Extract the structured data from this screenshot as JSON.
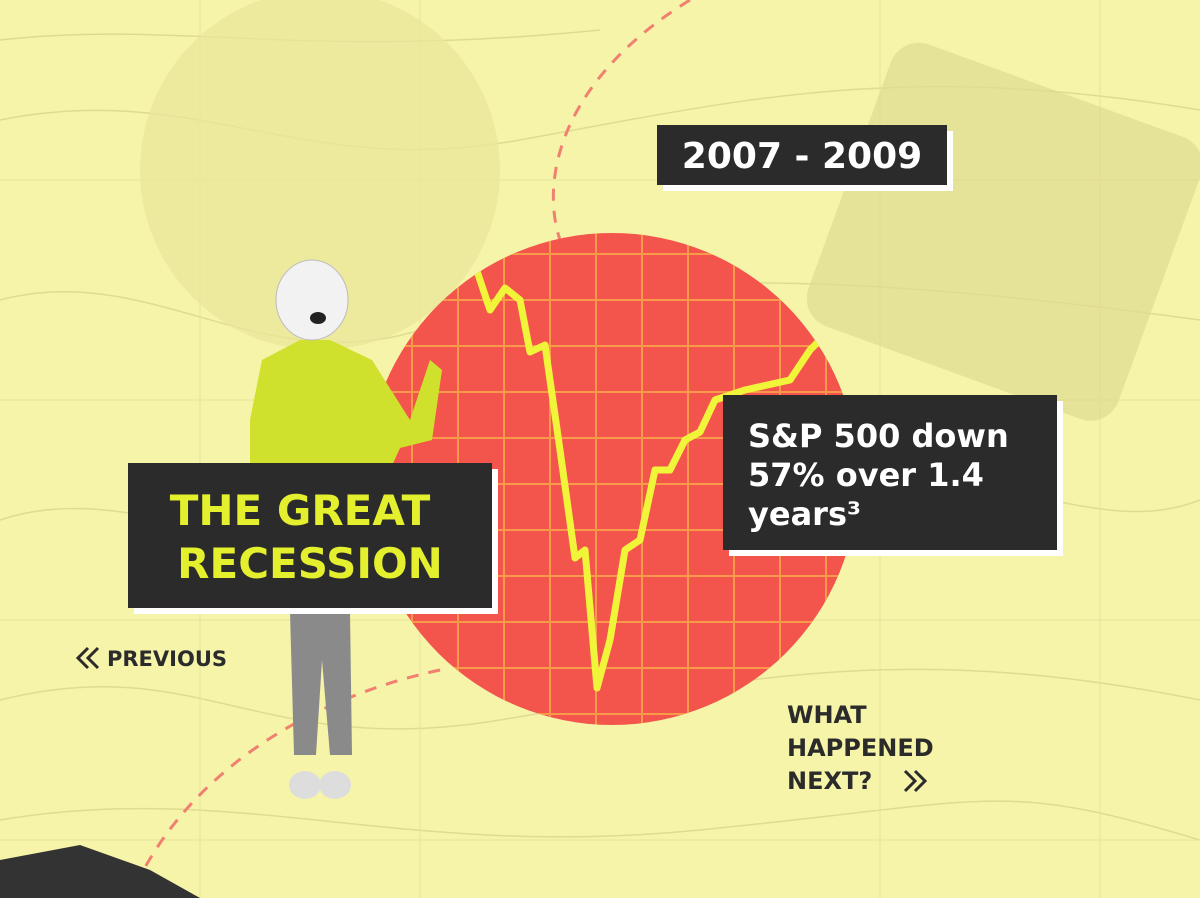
{
  "date_badge": "2007 - 2009",
  "title": [
    "THE GREAT",
    "RECESSION"
  ],
  "fact": [
    "S&P 500 down",
    "57% over 1.4",
    "years³"
  ],
  "nav": {
    "previous": "PREVIOUS",
    "next": [
      "WHAT",
      "HAPPENED",
      "NEXT?"
    ]
  }
}
